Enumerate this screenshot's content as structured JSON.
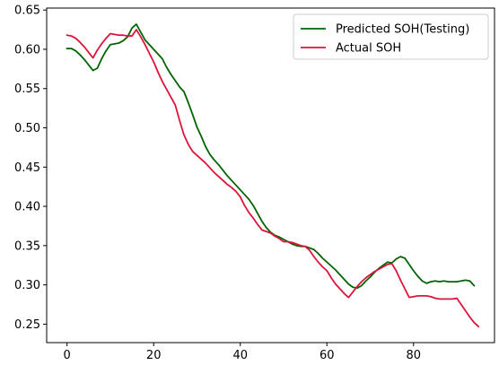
{
  "chart_data": {
    "type": "line",
    "title": "",
    "xlabel": "",
    "ylabel": "",
    "xlim": [
      -4.7,
      98.7
    ],
    "ylim": [
      0.2265,
      0.6525
    ],
    "x_ticks": [
      0,
      20,
      40,
      60,
      80
    ],
    "y_ticks": [
      0.25,
      0.3,
      0.35,
      0.4,
      0.45,
      0.5,
      0.55,
      0.6,
      0.65
    ],
    "y_tick_labels": [
      "0.25",
      "0.30",
      "0.35",
      "0.40",
      "0.45",
      "0.50",
      "0.55",
      "0.60",
      "0.65"
    ],
    "grid": false,
    "legend": "top-right",
    "series": [
      {
        "name": "Predicted SOH(Testing)",
        "color": "#006400",
        "points": [
          [
            0,
            0.601
          ],
          [
            1,
            0.601
          ],
          [
            2,
            0.598
          ],
          [
            3,
            0.593
          ],
          [
            4,
            0.587
          ],
          [
            5,
            0.58
          ],
          [
            6,
            0.573
          ],
          [
            7,
            0.576
          ],
          [
            8,
            0.588
          ],
          [
            9,
            0.598
          ],
          [
            10,
            0.606
          ],
          [
            11,
            0.607
          ],
          [
            12,
            0.608
          ],
          [
            13,
            0.611
          ],
          [
            14,
            0.616
          ],
          [
            15,
            0.627
          ],
          [
            16,
            0.632
          ],
          [
            17,
            0.622
          ],
          [
            18,
            0.612
          ],
          [
            19,
            0.606
          ],
          [
            20,
            0.6
          ],
          [
            21,
            0.594
          ],
          [
            22,
            0.588
          ],
          [
            23,
            0.577
          ],
          [
            24,
            0.568
          ],
          [
            25,
            0.56
          ],
          [
            26,
            0.552
          ],
          [
            27,
            0.546
          ],
          [
            28,
            0.532
          ],
          [
            29,
            0.517
          ],
          [
            30,
            0.501
          ],
          [
            31,
            0.489
          ],
          [
            32,
            0.476
          ],
          [
            33,
            0.466
          ],
          [
            34,
            0.459
          ],
          [
            35,
            0.453
          ],
          [
            36,
            0.446
          ],
          [
            37,
            0.439
          ],
          [
            38,
            0.433
          ],
          [
            39,
            0.427
          ],
          [
            40,
            0.421
          ],
          [
            41,
            0.415
          ],
          [
            42,
            0.409
          ],
          [
            43,
            0.401
          ],
          [
            44,
            0.391
          ],
          [
            45,
            0.381
          ],
          [
            46,
            0.373
          ],
          [
            47,
            0.367
          ],
          [
            48,
            0.363
          ],
          [
            49,
            0.361
          ],
          [
            50,
            0.358
          ],
          [
            51,
            0.355
          ],
          [
            52,
            0.352
          ],
          [
            53,
            0.35
          ],
          [
            54,
            0.349
          ],
          [
            55,
            0.349
          ],
          [
            56,
            0.347
          ],
          [
            57,
            0.345
          ],
          [
            58,
            0.34
          ],
          [
            59,
            0.334
          ],
          [
            60,
            0.329
          ],
          [
            61,
            0.324
          ],
          [
            62,
            0.319
          ],
          [
            63,
            0.313
          ],
          [
            64,
            0.307
          ],
          [
            65,
            0.301
          ],
          [
            66,
            0.297
          ],
          [
            67,
            0.296
          ],
          [
            68,
            0.299
          ],
          [
            69,
            0.305
          ],
          [
            70,
            0.31
          ],
          [
            71,
            0.316
          ],
          [
            72,
            0.321
          ],
          [
            73,
            0.325
          ],
          [
            74,
            0.329
          ],
          [
            75,
            0.328
          ],
          [
            76,
            0.333
          ],
          [
            77,
            0.336
          ],
          [
            78,
            0.334
          ],
          [
            79,
            0.326
          ],
          [
            80,
            0.318
          ],
          [
            81,
            0.311
          ],
          [
            82,
            0.305
          ],
          [
            83,
            0.302
          ],
          [
            84,
            0.304
          ],
          [
            85,
            0.305
          ],
          [
            86,
            0.304
          ],
          [
            87,
            0.305
          ],
          [
            88,
            0.304
          ],
          [
            89,
            0.304
          ],
          [
            90,
            0.304
          ],
          [
            91,
            0.305
          ],
          [
            92,
            0.306
          ],
          [
            93,
            0.305
          ],
          [
            94,
            0.299
          ]
        ]
      },
      {
        "name": "Actual SOH",
        "color": "#dc143c",
        "points": [
          [
            0,
            0.618
          ],
          [
            1,
            0.617
          ],
          [
            2,
            0.614
          ],
          [
            3,
            0.609
          ],
          [
            4,
            0.603
          ],
          [
            5,
            0.596
          ],
          [
            6,
            0.589
          ],
          [
            7,
            0.599
          ],
          [
            8,
            0.607
          ],
          [
            9,
            0.614
          ],
          [
            10,
            0.62
          ],
          [
            11,
            0.619
          ],
          [
            12,
            0.618
          ],
          [
            13,
            0.618
          ],
          [
            14,
            0.617
          ],
          [
            15,
            0.617
          ],
          [
            16,
            0.625
          ],
          [
            17,
            0.616
          ],
          [
            18,
            0.606
          ],
          [
            19,
            0.595
          ],
          [
            20,
            0.584
          ],
          [
            21,
            0.571
          ],
          [
            22,
            0.559
          ],
          [
            23,
            0.549
          ],
          [
            24,
            0.539
          ],
          [
            25,
            0.529
          ],
          [
            26,
            0.509
          ],
          [
            27,
            0.491
          ],
          [
            28,
            0.479
          ],
          [
            29,
            0.47
          ],
          [
            30,
            0.465
          ],
          [
            31,
            0.46
          ],
          [
            32,
            0.455
          ],
          [
            33,
            0.449
          ],
          [
            34,
            0.443
          ],
          [
            35,
            0.438
          ],
          [
            36,
            0.433
          ],
          [
            37,
            0.428
          ],
          [
            38,
            0.424
          ],
          [
            39,
            0.419
          ],
          [
            40,
            0.412
          ],
          [
            41,
            0.401
          ],
          [
            42,
            0.392
          ],
          [
            43,
            0.385
          ],
          [
            44,
            0.377
          ],
          [
            45,
            0.37
          ],
          [
            46,
            0.368
          ],
          [
            47,
            0.366
          ],
          [
            48,
            0.362
          ],
          [
            49,
            0.359
          ],
          [
            50,
            0.355
          ],
          [
            51,
            0.355
          ],
          [
            52,
            0.354
          ],
          [
            53,
            0.352
          ],
          [
            54,
            0.35
          ],
          [
            55,
            0.349
          ],
          [
            56,
            0.344
          ],
          [
            57,
            0.336
          ],
          [
            58,
            0.329
          ],
          [
            59,
            0.323
          ],
          [
            60,
            0.318
          ],
          [
            61,
            0.309
          ],
          [
            62,
            0.301
          ],
          [
            63,
            0.295
          ],
          [
            64,
            0.289
          ],
          [
            65,
            0.284
          ],
          [
            66,
            0.291
          ],
          [
            67,
            0.298
          ],
          [
            68,
            0.304
          ],
          [
            69,
            0.309
          ],
          [
            70,
            0.313
          ],
          [
            71,
            0.317
          ],
          [
            72,
            0.32
          ],
          [
            73,
            0.323
          ],
          [
            74,
            0.326
          ],
          [
            75,
            0.327
          ],
          [
            76,
            0.318
          ],
          [
            77,
            0.306
          ],
          [
            78,
            0.295
          ],
          [
            79,
            0.284
          ],
          [
            80,
            0.285
          ],
          [
            81,
            0.286
          ],
          [
            82,
            0.286
          ],
          [
            83,
            0.286
          ],
          [
            84,
            0.285
          ],
          [
            85,
            0.283
          ],
          [
            86,
            0.282
          ],
          [
            87,
            0.282
          ],
          [
            88,
            0.282
          ],
          [
            89,
            0.282
          ],
          [
            90,
            0.283
          ],
          [
            91,
            0.275
          ],
          [
            92,
            0.267
          ],
          [
            93,
            0.259
          ],
          [
            94,
            0.252
          ],
          [
            95,
            0.247
          ]
        ]
      }
    ]
  }
}
